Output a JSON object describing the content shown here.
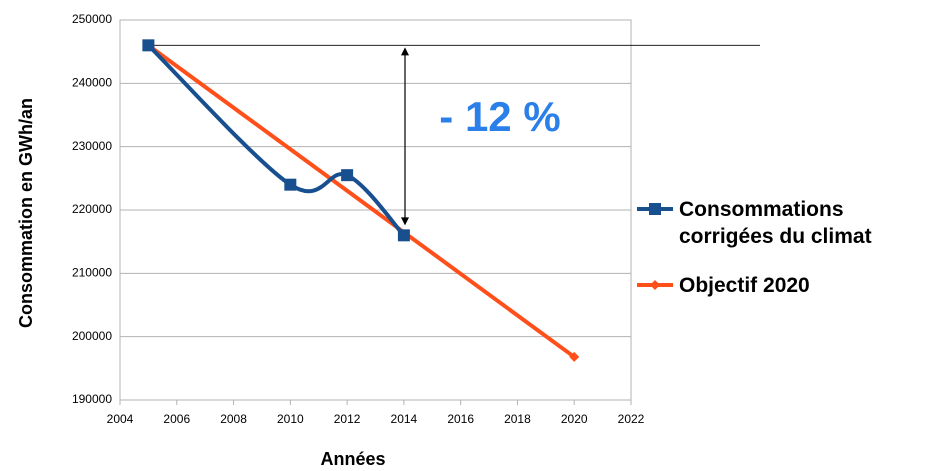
{
  "chart_data": {
    "type": "line",
    "x_label": "Années",
    "y_label": "Consommation en GWh/an",
    "annotation": "- 12 %",
    "series": [
      {
        "name": "Consommations corrigées du climat",
        "color": "#174f8f",
        "x": [
          2005,
          2010,
          2012,
          2014
        ],
        "values": [
          246000,
          224000,
          225500,
          216000
        ],
        "marker": "square",
        "smooth": true
      },
      {
        "name": "Objectif 2020",
        "color": "#ff4f1a",
        "x": [
          2005,
          2020
        ],
        "values": [
          246000,
          196800
        ],
        "marker": "diamond",
        "smooth": false
      }
    ],
    "xlim": [
      2004,
      2022
    ],
    "xticks": [
      2004,
      2006,
      2008,
      2010,
      2012,
      2014,
      2016,
      2018,
      2020,
      2022
    ],
    "ylim": [
      190000,
      250000
    ],
    "yticks": [
      190000,
      200000,
      210000,
      220000,
      230000,
      240000,
      250000
    ],
    "grid": true,
    "legend": "right"
  }
}
